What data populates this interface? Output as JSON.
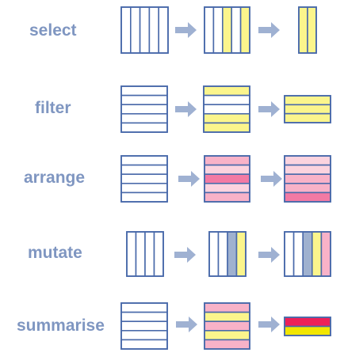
{
  "colors": {
    "outline": "#4a6aaa",
    "yellow": "#fbf58c",
    "slate": "#9fb1cf",
    "pink_light": "#fbd3df",
    "pink_mid": "#f8b2c8",
    "pink_hot": "#f27aa4",
    "red": "#ee2058",
    "bright_yellow": "#f2e600",
    "arrow": "#9fb1d2",
    "label": "#7f96c1"
  },
  "rows": [
    {
      "id": "select",
      "label": "select",
      "stages": [
        {
          "layout": "cols",
          "fills": [
            "",
            "",
            "",
            "",
            ""
          ]
        },
        {
          "layout": "cols",
          "fills": [
            "",
            "",
            "yellow",
            "",
            "yellow"
          ]
        },
        {
          "layout": "cols",
          "fills": [
            "yellow",
            "yellow"
          ]
        }
      ]
    },
    {
      "id": "filter",
      "label": "filter",
      "stages": [
        {
          "layout": "rows",
          "fills": [
            "",
            "",
            "",
            "",
            ""
          ]
        },
        {
          "layout": "rows",
          "fills": [
            "yellow",
            "",
            "",
            "yellow",
            "yellow"
          ]
        },
        {
          "layout": "rows",
          "fills": [
            "yellow",
            "yellow",
            "yellow"
          ]
        }
      ]
    },
    {
      "id": "arrange",
      "label": "arrange",
      "stages": [
        {
          "layout": "rows",
          "fills": [
            "",
            "",
            "",
            "",
            ""
          ]
        },
        {
          "layout": "rows",
          "fills": [
            "pink_mid",
            "pink_light",
            "pink_hot",
            "pink_light",
            "pink_mid"
          ]
        },
        {
          "layout": "rows",
          "fills": [
            "pink_light",
            "pink_light",
            "pink_mid",
            "pink_mid",
            "pink_hot"
          ]
        }
      ]
    },
    {
      "id": "mutate",
      "label": "mutate",
      "stages": [
        {
          "layout": "cols",
          "fills": [
            "",
            "",
            "",
            ""
          ]
        },
        {
          "layout": "cols",
          "fills": [
            "",
            "",
            "slate",
            "yellow"
          ]
        },
        {
          "layout": "cols",
          "fills": [
            "",
            "",
            "slate",
            "yellow",
            "pink_mid"
          ]
        }
      ]
    },
    {
      "id": "summarise",
      "label": "summarise",
      "stages": [
        {
          "layout": "rows",
          "fills": [
            "",
            "",
            "",
            "",
            ""
          ]
        },
        {
          "layout": "rows",
          "fills": [
            "pink_mid",
            "yellow",
            "pink_mid",
            "yellow",
            "pink_mid"
          ]
        },
        {
          "layout": "rows",
          "fills": [
            "red",
            "bright_yellow"
          ]
        }
      ]
    }
  ]
}
